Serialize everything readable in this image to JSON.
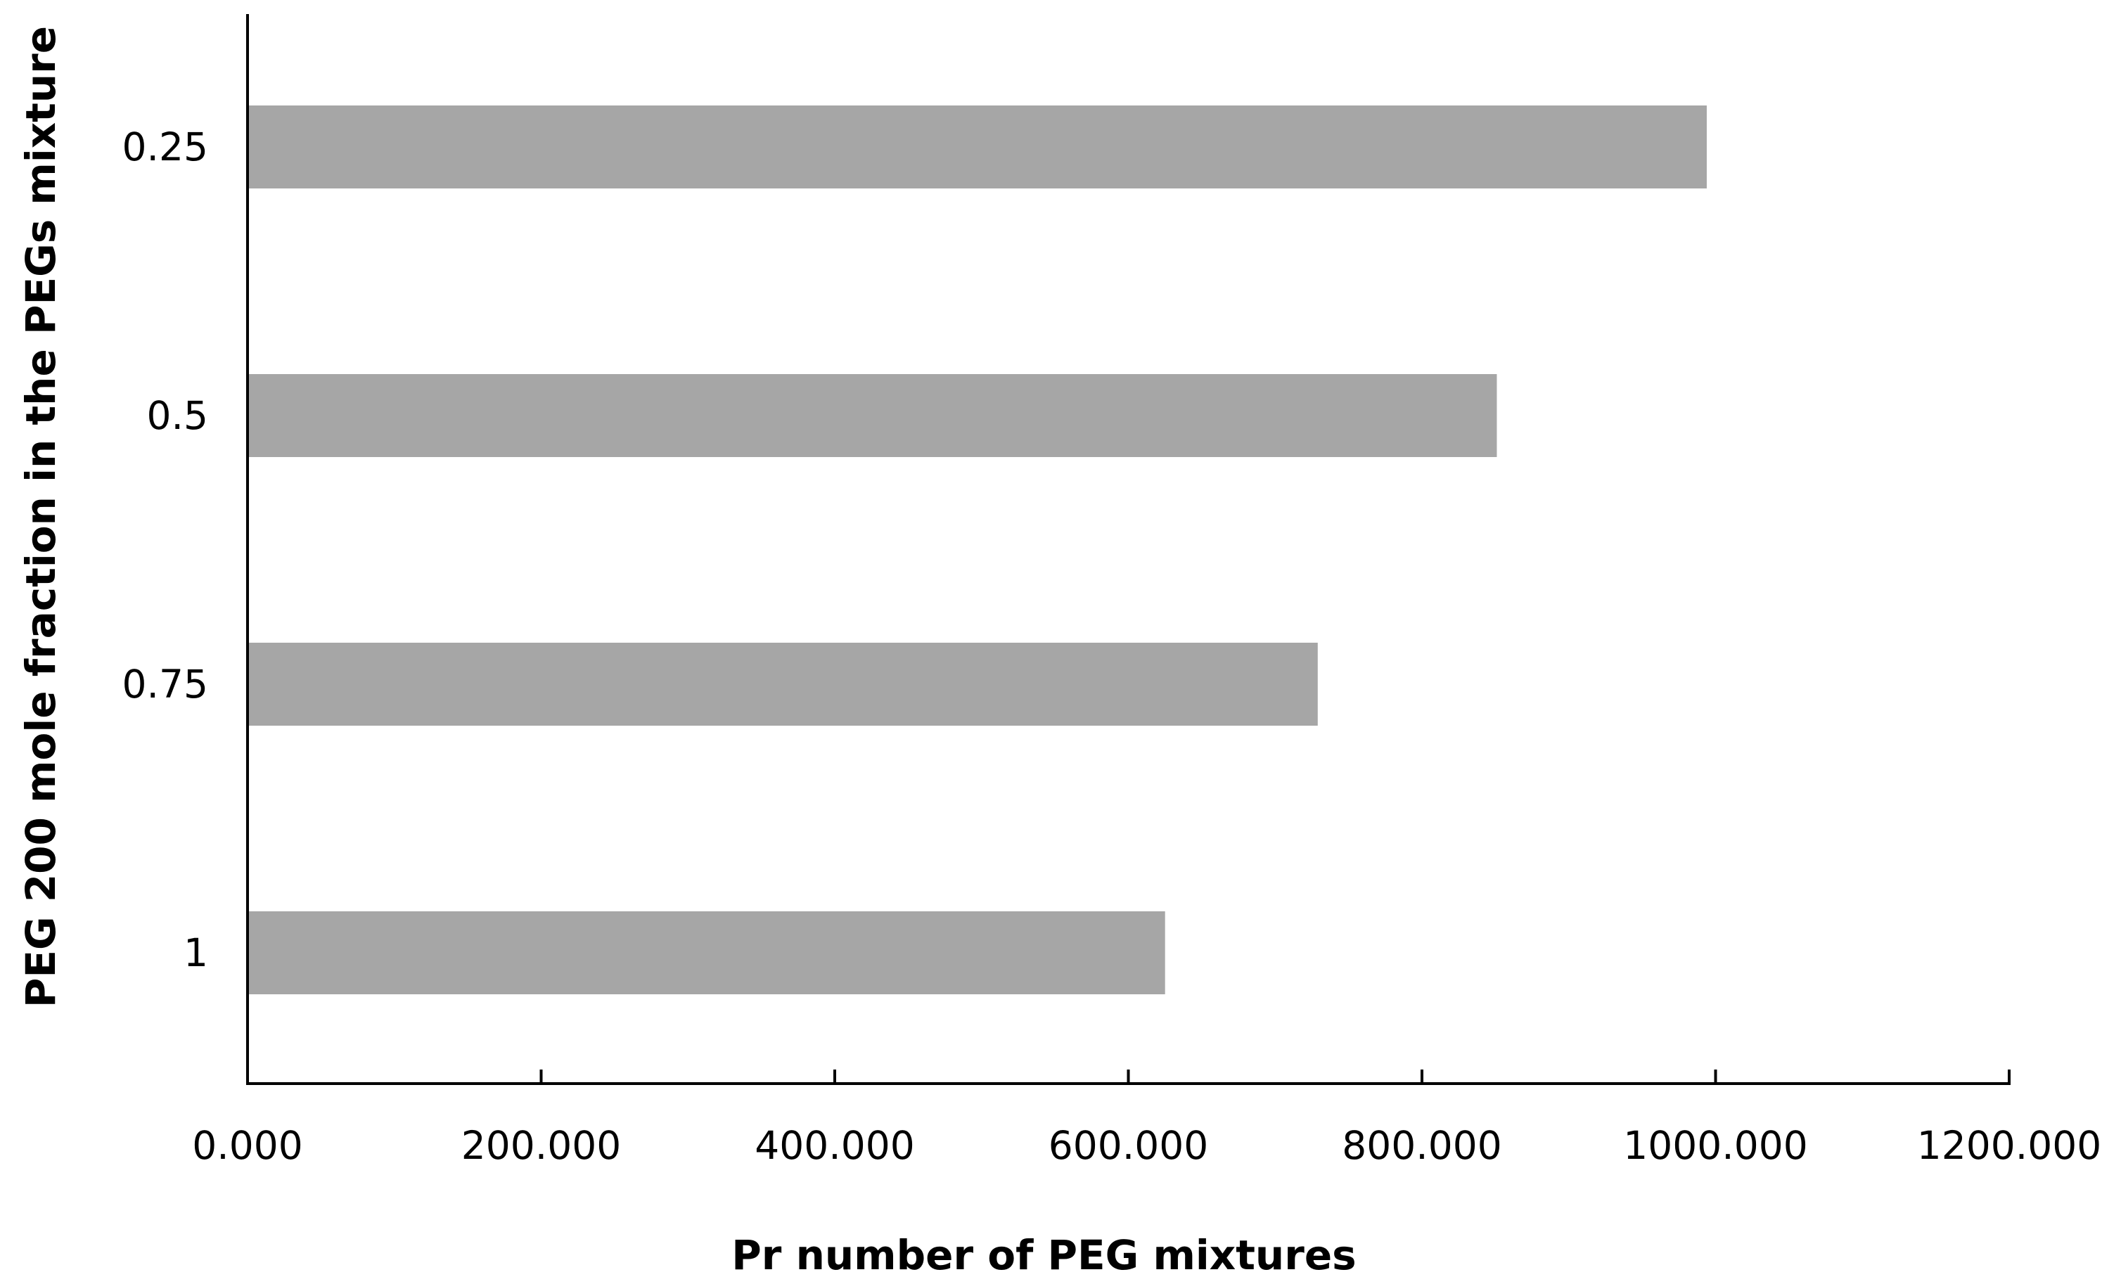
{
  "chart_data": {
    "type": "bar",
    "orientation": "horizontal",
    "categories": [
      "0.25",
      "0.5",
      "0.75",
      "1"
    ],
    "values": [
      994,
      851,
      729,
      625
    ],
    "xlabel": "Pr number of PEG mixtures",
    "ylabel": "PEG 200 mole fraction in the PEGs mixture",
    "xlim": [
      0,
      1200
    ],
    "xticks": [
      "0.000",
      "200.000",
      "400.000",
      "600.000",
      "800.000",
      "1000.000",
      "1200.000"
    ],
    "grid": false,
    "legend": "none",
    "bar_color": "#a6a6a6",
    "axis_color": "#000000"
  }
}
